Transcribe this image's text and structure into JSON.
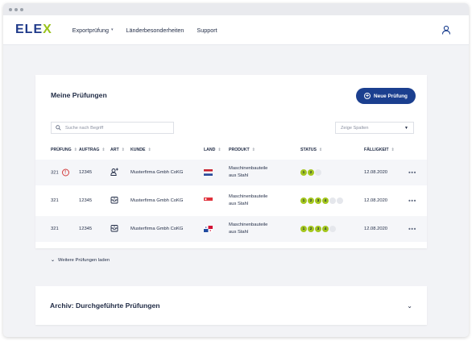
{
  "browser": {
    "dots": 3
  },
  "nav": {
    "logo_main": "ELE",
    "logo_x": "X",
    "items": [
      {
        "label": "Exportprüfung",
        "dropdown": true
      },
      {
        "label": "Länderbesonderheiten",
        "dropdown": false
      },
      {
        "label": "Support",
        "dropdown": false
      }
    ],
    "user_icon": "user-icon"
  },
  "main": {
    "title": "Meine Prüfungen",
    "new_button_label": "Neue Prüfung",
    "search_placeholder": "Suche nach Begriff",
    "columns_select_label": "Zeige Spalten",
    "columns": [
      "PRÜFUNG",
      "AUFTRAG",
      "ART",
      "KUNDE",
      "LAND",
      "PRODUKT",
      "STATUS",
      "FÄLLIGKEIT"
    ],
    "rows": [
      {
        "pruefung": "321",
        "warning": true,
        "auftrag": "12345",
        "art_icon": "person-add-icon",
        "kunde": "Musterfirma Gmbh CoKG",
        "land_flag": "netherlands-flag-icon",
        "produkt_line1": "Maschinenbauteile",
        "produkt_line2": "aus Stahl",
        "status_steps": [
          "1",
          "2",
          "3"
        ],
        "status_done": 2,
        "faelligkeit": "12.08.2020"
      },
      {
        "pruefung": "321",
        "warning": false,
        "auftrag": "12345",
        "art_icon": "package-icon",
        "kunde": "Musterfirma Gmbh CoKG",
        "land_flag": "singapore-flag-icon",
        "produkt_line1": "Maschinenbauteile",
        "produkt_line2": "aus Stahl",
        "status_steps": [
          "1",
          "2",
          "3",
          "4",
          "5",
          "6"
        ],
        "status_done": 4,
        "faelligkeit": "12.08.2020"
      },
      {
        "pruefung": "321",
        "warning": false,
        "auftrag": "12345",
        "art_icon": "package-icon",
        "kunde": "Musterfirma Gmbh CoKG",
        "land_flag": "panama-flag-icon",
        "produkt_line1": "Maschinenbauteile",
        "produkt_line2": "aus Stahl",
        "status_steps": [
          "1",
          "2",
          "3",
          "4",
          "5"
        ],
        "status_done": 4,
        "faelligkeit": "12.08.2020"
      }
    ],
    "more_label": "•••",
    "load_more_label": "Weitere Prüfungen laden"
  },
  "archive": {
    "title": "Archiv: Durchgeführte Prüfungen"
  },
  "colors": {
    "brand": "#1b3f8f",
    "accent": "#a3c61e",
    "warning": "#d23a3a"
  }
}
